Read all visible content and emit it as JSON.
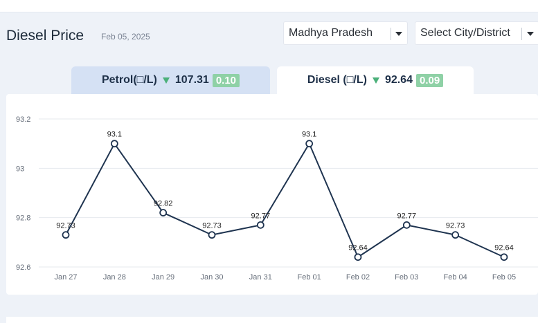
{
  "header": {
    "title": "Diesel Price",
    "date": "Feb 05, 2025"
  },
  "filters": {
    "state": "Madhya Pradesh",
    "city_placeholder": "Select City/District"
  },
  "tabs": {
    "petrol": {
      "label": "Petrol(□/L)",
      "price": "107.31",
      "change": "0.10"
    },
    "diesel": {
      "label": "Diesel (□/L)",
      "price": "92.64",
      "change": "0.09"
    }
  },
  "colors": {
    "line": "#1f3450",
    "decrease": "#4bb07a",
    "badge": "#8fd1a6",
    "active_tab": "#ffffff",
    "inactive_tab": "#d5e1f4"
  },
  "chart_data": {
    "type": "line",
    "categories": [
      "Jan 27",
      "Jan 28",
      "Jan 29",
      "Jan 30",
      "Jan 31",
      "Feb 01",
      "Feb 02",
      "Feb 03",
      "Feb 04",
      "Feb 05"
    ],
    "series": [
      {
        "values": [
          92.73,
          93.1,
          92.82,
          92.73,
          92.77,
          93.1,
          92.64,
          92.77,
          92.73,
          92.64
        ]
      }
    ],
    "data_labels": [
      "92.73",
      "93.1",
      "92.82",
      "92.73",
      "92.77",
      "93.1",
      "92.64",
      "92.77",
      "92.73",
      "92.64"
    ],
    "y_ticks": [
      92.6,
      92.8,
      93,
      93.2
    ],
    "y_tick_labels": [
      "92.6",
      "92.8",
      "93",
      "93.2"
    ],
    "ylim": [
      92.6,
      93.2
    ],
    "grid": true,
    "title": "",
    "xlabel": "",
    "ylabel": ""
  }
}
